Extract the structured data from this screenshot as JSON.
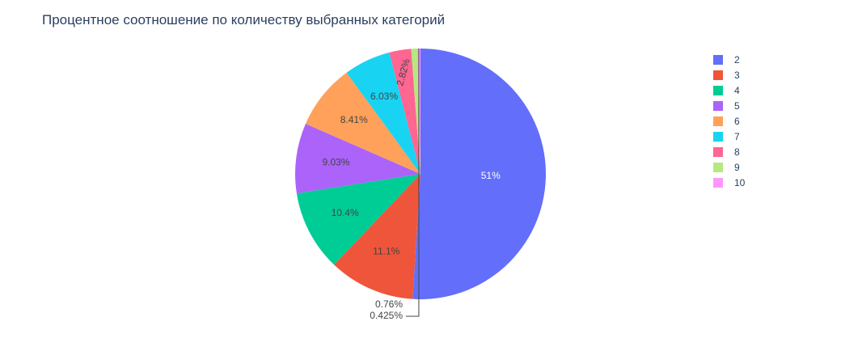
{
  "chart_data": {
    "type": "pie",
    "title": "Процентное соотношение по количеству выбранных категорий",
    "categories": [
      "2",
      "3",
      "4",
      "5",
      "6",
      "7",
      "8",
      "9",
      "10"
    ],
    "values": [
      51,
      11.1,
      10.4,
      9.03,
      8.41,
      6.03,
      2.82,
      0.76,
      0.425
    ],
    "labels": [
      "51%",
      "11.1%",
      "10.4%",
      "9.03%",
      "8.41%",
      "6.03%",
      "2.82%",
      "0.76%",
      "0.425%"
    ],
    "colors": [
      "#636efa",
      "#EF553B",
      "#00cc96",
      "#ab63fa",
      "#FFA15A",
      "#19d3f3",
      "#FF6692",
      "#B6E880",
      "#FF97FF"
    ],
    "legend_position": "top-right",
    "direction": "clockwise",
    "start": "top"
  }
}
